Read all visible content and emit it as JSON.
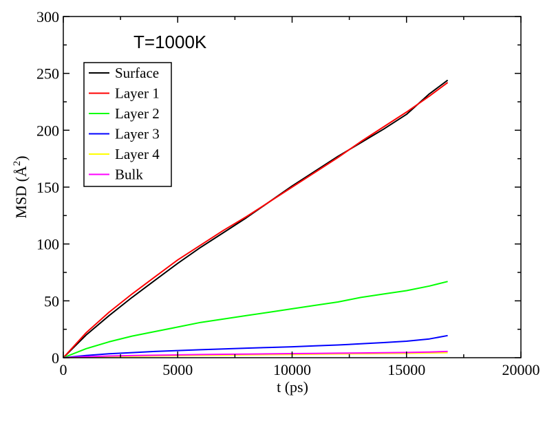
{
  "chart_data": {
    "type": "line",
    "title": "",
    "annotation": "T=1000K",
    "xlabel": "t (ps)",
    "ylabel_main": "MSD (",
    "ylabel_unit": "Å",
    "ylabel_sup": "2",
    "ylabel_end": ")",
    "xlim": [
      0,
      20000
    ],
    "ylim": [
      0,
      300
    ],
    "x_ticks": [
      0,
      5000,
      10000,
      15000,
      20000
    ],
    "y_ticks": [
      0,
      50,
      100,
      150,
      200,
      250,
      300
    ],
    "grid": false,
    "legend_position": "top-left",
    "x": [
      0,
      1000,
      2000,
      3000,
      4000,
      5000,
      6000,
      7000,
      8000,
      9000,
      10000,
      11000,
      12000,
      13000,
      14000,
      15000,
      16000,
      16800
    ],
    "series": [
      {
        "name": "Surface",
        "color": "#000000",
        "values": [
          0,
          20,
          37,
          53,
          68,
          83,
          97,
          110,
          123,
          137,
          151,
          164,
          177,
          189,
          201,
          214,
          232,
          244
        ]
      },
      {
        "name": "Layer 1",
        "color": "#ff0000",
        "values": [
          0,
          22,
          40,
          56,
          71,
          86,
          99,
          112,
          124,
          137,
          150,
          163,
          176,
          190,
          203,
          216,
          230,
          242
        ]
      },
      {
        "name": "Layer 2",
        "color": "#00ff00",
        "values": [
          0,
          8,
          14,
          19,
          23,
          27,
          31,
          34,
          37,
          40,
          43,
          46,
          49,
          53,
          56,
          59,
          63,
          67
        ]
      },
      {
        "name": "Layer 3",
        "color": "#0000ff",
        "values": [
          0,
          2,
          3.5,
          4.5,
          5.5,
          6.3,
          7,
          7.7,
          8.4,
          9,
          9.6,
          10.4,
          11.2,
          12.2,
          13.3,
          14.5,
          16.5,
          19.5
        ]
      },
      {
        "name": "Layer 4",
        "color": "#ffff00",
        "values": [
          0,
          0.6,
          1,
          1.3,
          1.6,
          1.9,
          2.1,
          2.3,
          2.5,
          2.7,
          2.9,
          3.1,
          3.3,
          3.5,
          3.7,
          3.9,
          4.2,
          4.5
        ]
      },
      {
        "name": "Bulk",
        "color": "#ff00ff",
        "values": [
          0,
          0.9,
          1.5,
          1.9,
          2.2,
          2.5,
          2.8,
          3,
          3.2,
          3.4,
          3.6,
          3.8,
          4,
          4.2,
          4.4,
          4.6,
          5,
          5.5
        ]
      }
    ]
  }
}
